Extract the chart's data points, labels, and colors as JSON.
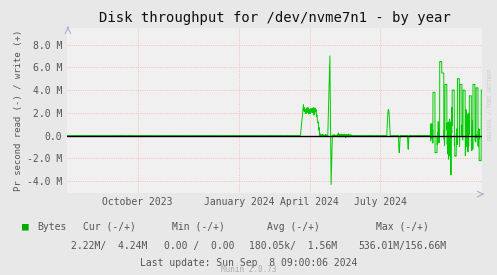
{
  "title": "Disk throughput for /dev/nvme7n1 - by year",
  "ylabel": "Pr second read (-) / write (+)",
  "background_color": "#e8e8e8",
  "plot_bg_color": "#f0f0f0",
  "grid_color": "#ffaaaa",
  "line_color": "#00cc00",
  "zero_line_color": "#000000",
  "ylim": [
    -5000000,
    9500000
  ],
  "yticks": [
    -4000000,
    -2000000,
    0,
    2000000,
    4000000,
    6000000,
    8000000
  ],
  "ytick_labels": [
    "-4.0 M",
    "-2.0 M",
    "0.0",
    "2.0 M",
    "4.0 M",
    "6.0 M",
    "8.0 M"
  ],
  "legend_label": "Bytes",
  "legend_color": "#00aa00",
  "footer_text": "Last update: Sun Sep  8 09:00:06 2024",
  "munin_text": "Munin 2.0.73",
  "cur_text": "Cur (-/+)",
  "min_text": "Min (-/+)",
  "avg_text": "Avg (-/+)",
  "max_text": "Max (-/+)",
  "cur_val": "2.22M/  4.24M",
  "min_val": "0.00 /  0.00",
  "avg_val": "180.05k/  1.56M",
  "max_val": "536.01M/156.66M",
  "watermark": "RRDTOOL / TOBI OETIKER",
  "title_fontsize": 10,
  "tick_fontsize": 7,
  "legend_fontsize": 7,
  "x_tick_pos": [
    0.17,
    0.415,
    0.585,
    0.755
  ],
  "x_tick_labels": [
    "October 2023",
    "January 2024",
    "April 2024",
    "July 2024"
  ]
}
